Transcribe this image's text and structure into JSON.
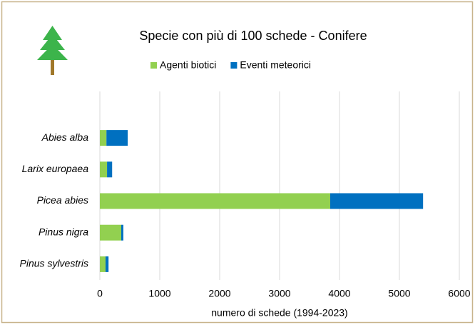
{
  "chart_data": {
    "type": "stacked_barh",
    "title": "Specie con più di 100 schede - Conifere",
    "xlabel": "numero di schede (1994-2023)",
    "categories": [
      "Abies alba",
      "Larix europaea",
      "Picea abies",
      "Pinus nigra",
      "Pinus sylvestris"
    ],
    "series": [
      {
        "name": "Agenti biotici",
        "color": "#92d050",
        "values": [
          110,
          120,
          3845,
          357,
          95
        ]
      },
      {
        "name": "Eventi meteorici",
        "color": "#0070c0",
        "values": [
          355,
          85,
          1550,
          35,
          50
        ]
      }
    ],
    "xlim": [
      0,
      6000
    ],
    "xticks": [
      0,
      1000,
      2000,
      3000,
      4000,
      5000,
      6000
    ],
    "grid": true,
    "legend": "top"
  }
}
